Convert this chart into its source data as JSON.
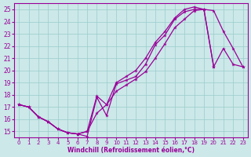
{
  "xlabel": "Windchill (Refroidissement éolien,°C)",
  "bg_color": "#cce8e8",
  "line_color": "#990099",
  "marker": "*",
  "xlim": [
    -0.5,
    23.5
  ],
  "ylim": [
    14.5,
    25.5
  ],
  "xticks": [
    0,
    1,
    2,
    3,
    4,
    5,
    6,
    7,
    8,
    9,
    10,
    11,
    12,
    13,
    14,
    15,
    16,
    17,
    18,
    19,
    20,
    21,
    22,
    23
  ],
  "yticks": [
    15,
    16,
    17,
    18,
    19,
    20,
    21,
    22,
    23,
    24,
    25
  ],
  "grid_color": "#99cccc",
  "line1_x": [
    0,
    1,
    2,
    3,
    4,
    5,
    6,
    7,
    8,
    9,
    10,
    11,
    12,
    13,
    14,
    15,
    16,
    17,
    18,
    19,
    20,
    21,
    22,
    23
  ],
  "line1_y": [
    17.2,
    17.0,
    16.2,
    15.8,
    15.2,
    14.9,
    14.8,
    15.0,
    16.5,
    17.2,
    18.3,
    18.8,
    19.3,
    19.9,
    21.0,
    22.2,
    23.5,
    24.2,
    24.9,
    25.0,
    20.3,
    21.8,
    20.5,
    20.3
  ],
  "line2_x": [
    0,
    1,
    2,
    3,
    4,
    5,
    6,
    7,
    8,
    9,
    10,
    11,
    12,
    13,
    14,
    15,
    16,
    17,
    18,
    19,
    20
  ],
  "line2_y": [
    17.2,
    17.0,
    16.2,
    15.8,
    15.2,
    14.9,
    14.8,
    15.0,
    17.9,
    17.2,
    19.0,
    19.5,
    20.0,
    21.0,
    22.3,
    23.2,
    24.3,
    25.0,
    25.2,
    25.0,
    20.3
  ],
  "line3_x": [
    0,
    1,
    2,
    3,
    4,
    5,
    6,
    7,
    8,
    9,
    10,
    11,
    12,
    13,
    14,
    15,
    16,
    17,
    18,
    19,
    20,
    21,
    22,
    23
  ],
  "line3_y": [
    17.2,
    17.0,
    16.2,
    15.8,
    15.2,
    14.9,
    14.8,
    14.6,
    17.8,
    16.3,
    18.9,
    19.2,
    19.5,
    20.5,
    22.1,
    22.9,
    24.2,
    24.8,
    25.0,
    25.0,
    24.9,
    23.2,
    21.8,
    20.3
  ]
}
